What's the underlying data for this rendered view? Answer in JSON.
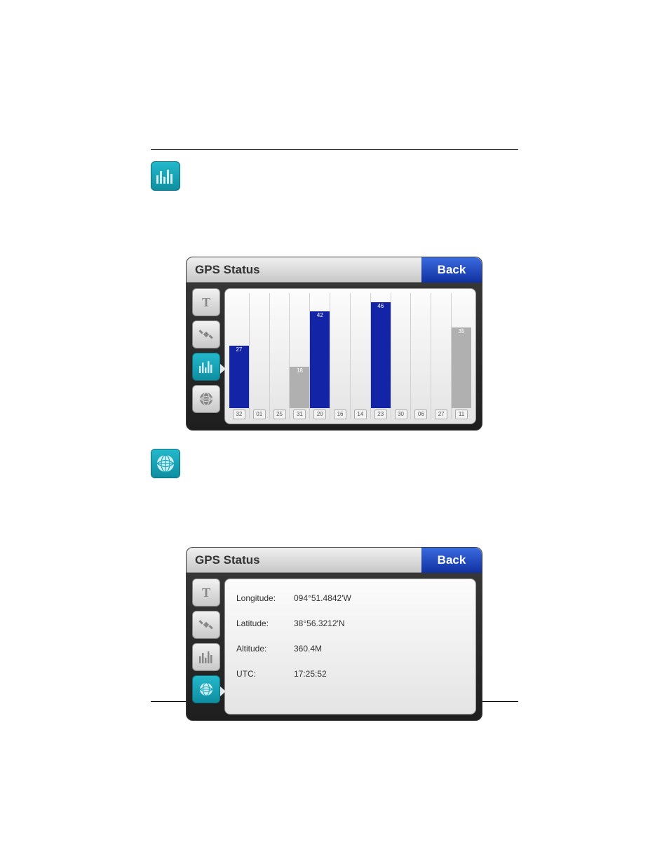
{
  "colors": {
    "accent_teal": "#18a8b8",
    "back_blue_top": "#3a6be0",
    "back_blue_bottom": "#1030a0",
    "bar_blue": "#1424a6",
    "bar_gray": "#b0b0b0",
    "panel_bg": "#2a2a2a",
    "card_bg": "#f0f0f0"
  },
  "icons": {
    "bars": "bars-icon",
    "globe": "globe-icon",
    "text": "text-icon",
    "satellite": "satellite-icon"
  },
  "panel": {
    "title": "GPS Status",
    "back_label": "Back"
  },
  "signal_chart": {
    "type": "bar",
    "ylim": [
      0,
      50
    ],
    "bar_colors": {
      "locked": "#1424a6",
      "unlocked": "#b0b0b0"
    },
    "sats": [
      {
        "id": "32",
        "value": 27,
        "locked": true
      },
      {
        "id": "01",
        "value": 0,
        "locked": false
      },
      {
        "id": "25",
        "value": 0,
        "locked": false
      },
      {
        "id": "31",
        "value": 18,
        "locked": false
      },
      {
        "id": "20",
        "value": 42,
        "locked": true
      },
      {
        "id": "16",
        "value": 0,
        "locked": false
      },
      {
        "id": "14",
        "value": 0,
        "locked": false
      },
      {
        "id": "23",
        "value": 46,
        "locked": true
      },
      {
        "id": "30",
        "value": 0,
        "locked": false
      },
      {
        "id": "06",
        "value": 0,
        "locked": false
      },
      {
        "id": "27",
        "value": 0,
        "locked": false
      },
      {
        "id": "11",
        "value": 35,
        "locked": false
      }
    ]
  },
  "position": {
    "labels": {
      "longitude": "Longitude:",
      "latitude": "Latitude:",
      "altitude": "Altitude:",
      "utc": "UTC:"
    },
    "longitude": "094°51.4842'W",
    "latitude": "38°56.3212'N",
    "altitude": "360.4M",
    "utc": "17:25:52"
  }
}
